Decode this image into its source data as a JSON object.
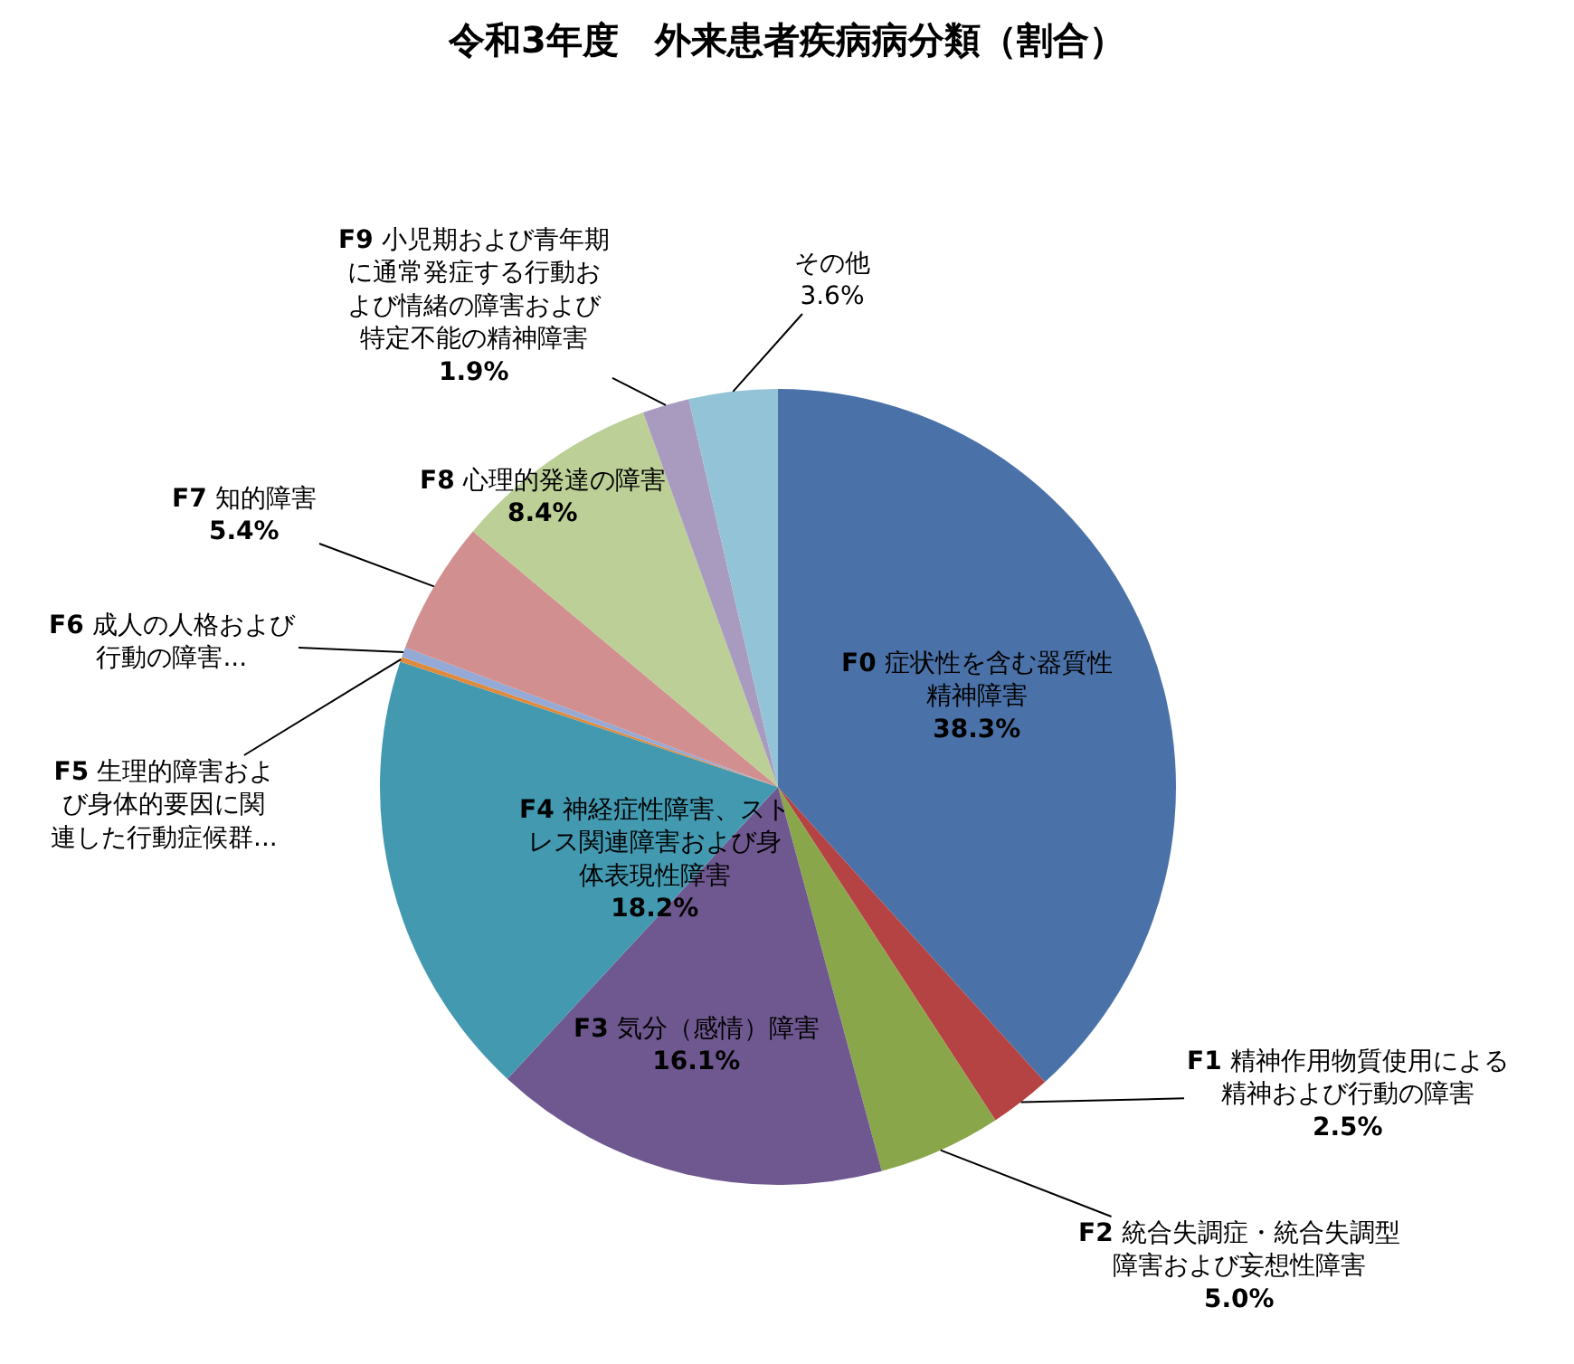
{
  "chart_data": {
    "type": "pie",
    "title": "令和3年度　外来患者疾病病分類（割合）",
    "categories": [
      "F0 症状性を含む器質性精神障害",
      "F1 精神作用物質使用による精神および行動の障害",
      "F2 統合失調症・統合失調型障害および妄想性障害",
      "F3 気分（感情）障害",
      "F4 神経症性障害、ストレス関連障害および身体表現性障害",
      "F5 生理的障害および身体的要因に関連した行動症候群...",
      "F6 成人の人格および行動の障害...",
      "F7 知的障害",
      "F8 心理的発達の障害",
      "F9 小児期および青年期に通常発症する行動および情緒の障害および特定不能の精神障害",
      "その他"
    ],
    "values": [
      38.3,
      2.5,
      5.0,
      16.1,
      18.2,
      0.2,
      0.4,
      5.4,
      8.4,
      1.9,
      3.6
    ],
    "value_labels": [
      "38.3%",
      "2.5%",
      "5.0%",
      "16.1%",
      "18.2%",
      null,
      null,
      "5.4%",
      "8.4%",
      "1.9%",
      "3.6%"
    ],
    "colors": [
      "#4a72a8",
      "#b54343",
      "#8aa64a",
      "#6f5890",
      "#4299b0",
      "#e08a3c",
      "#94a9d6",
      "#d28f8f",
      "#bccf96",
      "#a99bc0",
      "#93c3d6"
    ]
  }
}
